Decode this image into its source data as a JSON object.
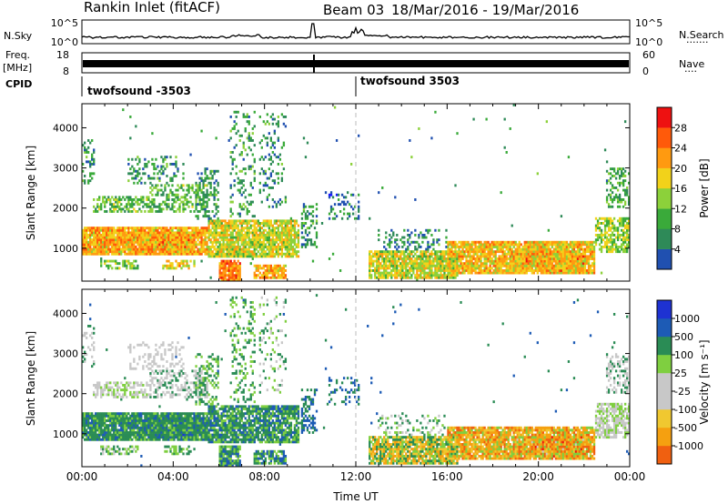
{
  "header": {
    "station": "Rankin Inlet (fitACF)",
    "beam": "Beam 03",
    "dates": "18/Mar/2016 - 19/Mar/2016"
  },
  "top_panels": {
    "nsky_label": "N.Sky",
    "nsearch_label": "N.Search",
    "nsearch_dots": "·······",
    "nsky_ticks": [
      "10^5",
      "10^0"
    ],
    "nsearch_ticks": [
      "10^5",
      "10^0"
    ],
    "freq_label_1": "Freq.",
    "freq_label_2": "[MHz]",
    "freq_ticks": [
      "18",
      "8"
    ],
    "nave_label": "Nave",
    "nave_dots": "····",
    "nave_ticks": [
      "60",
      "0"
    ],
    "cpid_label": "CPID",
    "cpid_segments": [
      {
        "label": "twofsound -3503",
        "start_hour": 0,
        "end_hour": 12
      },
      {
        "label": "twofsound 3503",
        "start_hour": 12,
        "end_hour": 24
      }
    ]
  },
  "colors": {
    "power": [
      "#1a1aff",
      "#2050b0",
      "#2e8a58",
      "#3aaa3a",
      "#8cd13a",
      "#f2d21a",
      "#ff9a10",
      "#ff5a0a",
      "#ee1111"
    ],
    "velocity": [
      "#ee1111",
      "#f06010",
      "#f5a010",
      "#f0c830",
      "#c8c8c8",
      "#c8c8c8",
      "#7fcf40",
      "#2a8c55",
      "#1d5bb5",
      "#1e32d2"
    ]
  },
  "chart_data": [
    {
      "type": "heatmap",
      "name": "power",
      "xlabel": "",
      "ylabel": "Slant Range [km]",
      "x_ticks": [],
      "y_ticks": [
        "1000",
        "2000",
        "3000",
        "4000"
      ],
      "yticks_values": [
        1000,
        2000,
        3000,
        4000
      ],
      "ylim": [
        180,
        4600
      ],
      "xlim_hours": [
        0,
        24
      ],
      "colorbar_label": "Power [dB]",
      "colorbar_ticks": [
        "4",
        "8",
        "12",
        "16",
        "20",
        "24",
        "28"
      ],
      "colorbar_range": [
        0,
        32
      ]
    },
    {
      "type": "heatmap",
      "name": "velocity",
      "xlabel": "Time UT",
      "ylabel": "Slant Range [km]",
      "x_ticks": [
        "00:00",
        "04:00",
        "08:00",
        "12:00",
        "16:00",
        "20:00",
        "00:00"
      ],
      "x_tick_hours": [
        0,
        4,
        8,
        12,
        16,
        20,
        24
      ],
      "y_ticks": [
        "1000",
        "2000",
        "3000",
        "4000"
      ],
      "yticks_values": [
        1000,
        2000,
        3000,
        4000
      ],
      "ylim": [
        180,
        4600
      ],
      "xlim_hours": [
        0,
        24
      ],
      "colorbar_label": "Velocity [m s⁻¹]",
      "colorbar_ticks": [
        "1000",
        "500",
        "100",
        "25",
        "-25",
        "-100",
        "-500",
        "-1000"
      ]
    }
  ]
}
